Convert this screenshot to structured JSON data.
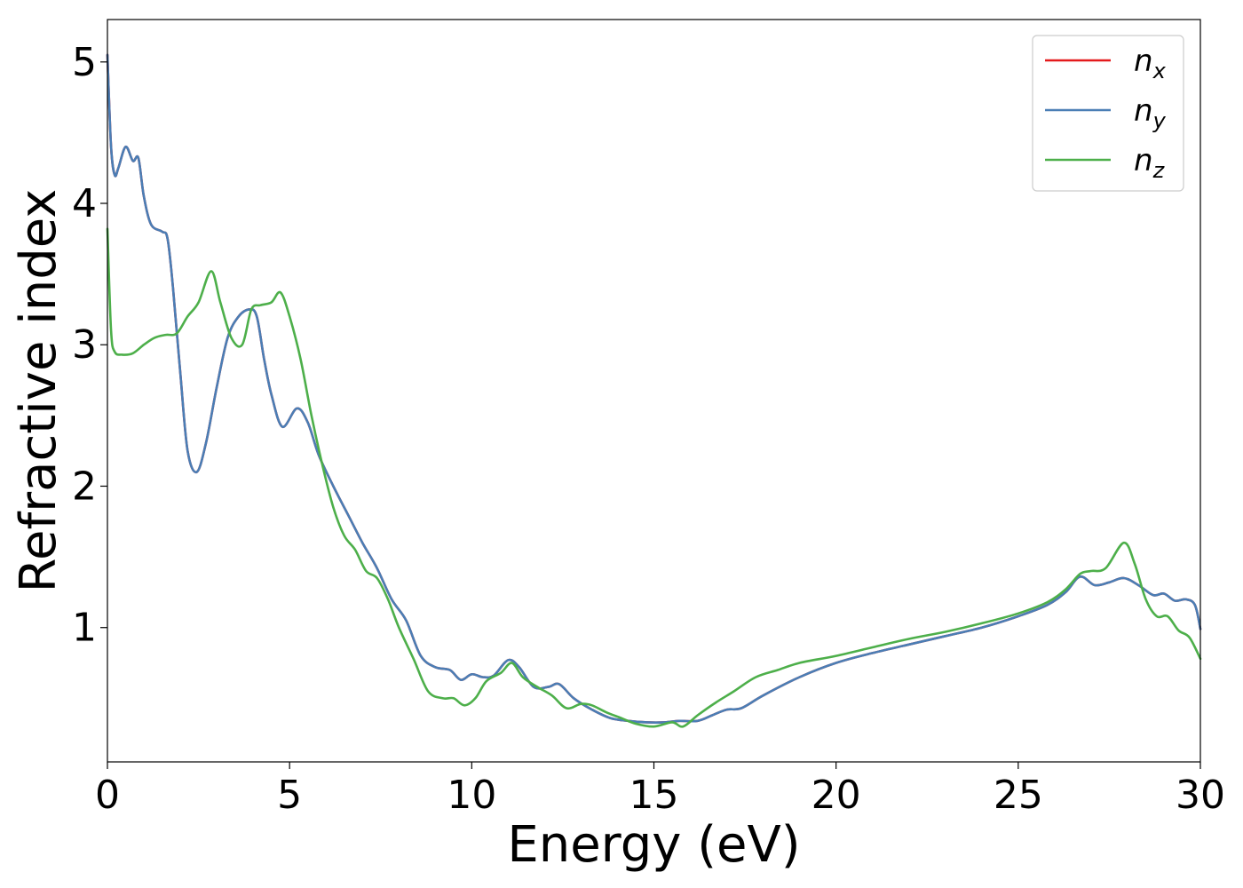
{
  "chart_data": {
    "type": "line",
    "xlabel": "Energy (eV)",
    "ylabel": "Refractive index",
    "xlim": [
      0,
      30
    ],
    "ylim": [
      0.05,
      5.3
    ],
    "xticks": [
      "0",
      "5",
      "10",
      "15",
      "20",
      "25",
      "30"
    ],
    "yticks": [
      "1",
      "2",
      "3",
      "4",
      "5"
    ],
    "grid": false,
    "legend_position": "top-right",
    "series": [
      {
        "name": "n_x",
        "label_base": "n",
        "label_sub": "x",
        "color": "#e41a1c",
        "x": [
          0,
          0.1,
          0.2,
          0.3,
          0.5,
          0.7,
          0.85,
          1.0,
          1.2,
          1.5,
          1.65,
          1.8,
          2.0,
          2.2,
          2.45,
          2.7,
          3.0,
          3.3,
          3.6,
          3.9,
          4.1,
          4.3,
          4.5,
          4.8,
          5.2,
          5.5,
          5.8,
          6.2,
          6.6,
          7.0,
          7.4,
          7.8,
          8.2,
          8.6,
          9.0,
          9.4,
          9.7,
          10.0,
          10.3,
          10.6,
          11.0,
          11.3,
          11.7,
          12.1,
          12.4,
          12.8,
          13.3,
          13.8,
          14.3,
          14.8,
          15.3,
          15.7,
          16.2,
          16.6,
          17.0,
          17.4,
          18.0,
          19.0,
          20.0,
          21.0,
          22.0,
          23.0,
          24.0,
          25.0,
          25.8,
          26.3,
          26.7,
          27.1,
          27.5,
          27.9,
          28.3,
          28.7,
          29.0,
          29.3,
          29.6,
          29.85,
          30.0
        ],
        "y": [
          5.05,
          4.4,
          4.2,
          4.25,
          4.4,
          4.3,
          4.32,
          4.05,
          3.85,
          3.8,
          3.75,
          3.4,
          2.8,
          2.25,
          2.1,
          2.3,
          2.7,
          3.05,
          3.2,
          3.25,
          3.2,
          2.9,
          2.65,
          2.42,
          2.55,
          2.45,
          2.22,
          2.0,
          1.8,
          1.6,
          1.42,
          1.2,
          1.05,
          0.8,
          0.72,
          0.7,
          0.63,
          0.67,
          0.65,
          0.66,
          0.77,
          0.72,
          0.58,
          0.58,
          0.6,
          0.5,
          0.42,
          0.36,
          0.34,
          0.33,
          0.33,
          0.34,
          0.34,
          0.38,
          0.42,
          0.43,
          0.52,
          0.65,
          0.75,
          0.82,
          0.88,
          0.94,
          1.0,
          1.08,
          1.16,
          1.25,
          1.36,
          1.3,
          1.32,
          1.35,
          1.3,
          1.23,
          1.24,
          1.19,
          1.2,
          1.16,
          0.99
        ]
      },
      {
        "name": "n_y",
        "label_base": "n",
        "label_sub": "y",
        "color": "#4a7eb5",
        "x": [
          0,
          0.1,
          0.2,
          0.3,
          0.5,
          0.7,
          0.85,
          1.0,
          1.2,
          1.5,
          1.65,
          1.8,
          2.0,
          2.2,
          2.45,
          2.7,
          3.0,
          3.3,
          3.6,
          3.9,
          4.1,
          4.3,
          4.5,
          4.8,
          5.2,
          5.5,
          5.8,
          6.2,
          6.6,
          7.0,
          7.4,
          7.8,
          8.2,
          8.6,
          9.0,
          9.4,
          9.7,
          10.0,
          10.3,
          10.6,
          11.0,
          11.3,
          11.7,
          12.1,
          12.4,
          12.8,
          13.3,
          13.8,
          14.3,
          14.8,
          15.3,
          15.7,
          16.2,
          16.6,
          17.0,
          17.4,
          18.0,
          19.0,
          20.0,
          21.0,
          22.0,
          23.0,
          24.0,
          25.0,
          25.8,
          26.3,
          26.7,
          27.1,
          27.5,
          27.9,
          28.3,
          28.7,
          29.0,
          29.3,
          29.6,
          29.85,
          30.0
        ],
        "y": [
          5.05,
          4.4,
          4.2,
          4.25,
          4.4,
          4.3,
          4.32,
          4.05,
          3.85,
          3.8,
          3.75,
          3.4,
          2.8,
          2.25,
          2.1,
          2.3,
          2.7,
          3.05,
          3.2,
          3.25,
          3.2,
          2.9,
          2.65,
          2.42,
          2.55,
          2.45,
          2.22,
          2.0,
          1.8,
          1.6,
          1.42,
          1.2,
          1.05,
          0.8,
          0.72,
          0.7,
          0.63,
          0.67,
          0.65,
          0.66,
          0.77,
          0.72,
          0.58,
          0.58,
          0.6,
          0.5,
          0.42,
          0.36,
          0.34,
          0.33,
          0.33,
          0.34,
          0.34,
          0.38,
          0.42,
          0.43,
          0.52,
          0.65,
          0.75,
          0.82,
          0.88,
          0.94,
          1.0,
          1.08,
          1.16,
          1.25,
          1.36,
          1.3,
          1.32,
          1.35,
          1.3,
          1.23,
          1.24,
          1.19,
          1.2,
          1.16,
          0.99
        ]
      },
      {
        "name": "n_z",
        "label_base": "n",
        "label_sub": "z",
        "color": "#4daf4a",
        "x": [
          0,
          0.1,
          0.2,
          0.4,
          0.7,
          1.0,
          1.3,
          1.6,
          1.9,
          2.2,
          2.5,
          2.85,
          3.1,
          3.4,
          3.7,
          3.95,
          4.2,
          4.5,
          4.75,
          5.0,
          5.3,
          5.6,
          5.9,
          6.2,
          6.5,
          6.8,
          7.1,
          7.4,
          7.7,
          8.0,
          8.4,
          8.8,
          9.2,
          9.5,
          9.8,
          10.1,
          10.4,
          10.8,
          11.1,
          11.4,
          11.8,
          12.2,
          12.6,
          13.0,
          13.3,
          13.7,
          14.1,
          14.5,
          15.0,
          15.5,
          15.8,
          16.2,
          16.7,
          17.2,
          17.8,
          18.4,
          19.0,
          20.0,
          21.0,
          22.0,
          23.0,
          24.0,
          25.0,
          25.8,
          26.3,
          26.7,
          27.0,
          27.4,
          27.9,
          28.2,
          28.5,
          28.8,
          29.1,
          29.4,
          29.7,
          30.0
        ],
        "y": [
          3.82,
          3.1,
          2.95,
          2.93,
          2.94,
          3.0,
          3.05,
          3.07,
          3.08,
          3.2,
          3.3,
          3.52,
          3.3,
          3.05,
          3.0,
          3.25,
          3.28,
          3.3,
          3.37,
          3.2,
          2.9,
          2.5,
          2.15,
          1.85,
          1.65,
          1.55,
          1.4,
          1.35,
          1.2,
          1.0,
          0.78,
          0.55,
          0.5,
          0.5,
          0.45,
          0.5,
          0.62,
          0.68,
          0.75,
          0.65,
          0.58,
          0.52,
          0.43,
          0.46,
          0.45,
          0.4,
          0.36,
          0.32,
          0.3,
          0.33,
          0.3,
          0.38,
          0.47,
          0.55,
          0.65,
          0.7,
          0.75,
          0.8,
          0.86,
          0.92,
          0.97,
          1.03,
          1.1,
          1.18,
          1.27,
          1.38,
          1.4,
          1.42,
          1.6,
          1.45,
          1.2,
          1.08,
          1.08,
          0.98,
          0.93,
          0.78
        ]
      }
    ]
  }
}
